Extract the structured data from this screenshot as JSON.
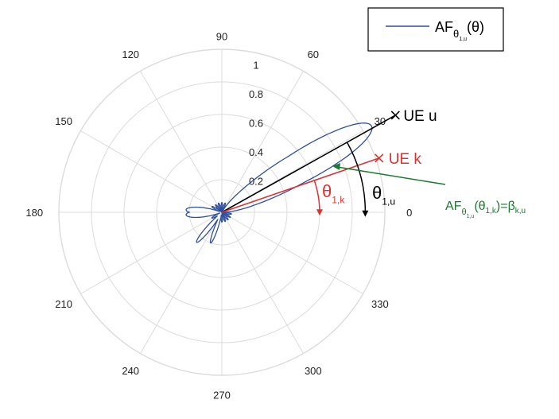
{
  "chart_data": {
    "type": "line",
    "subtype": "polar",
    "title": "",
    "rmax": 1,
    "radial_ticks": [
      "0.2",
      "0.4",
      "0.6",
      "0.8",
      "1"
    ],
    "radial_tick_values": [
      0.2,
      0.4,
      0.6,
      0.8,
      1.0
    ],
    "angular_ticks": [
      "0",
      "30",
      "60",
      "90",
      "120",
      "150",
      "180",
      "210",
      "240",
      "270",
      "300",
      "330"
    ],
    "angular_tick_values": [
      0,
      30,
      60,
      90,
      120,
      150,
      180,
      210,
      240,
      270,
      300,
      330
    ],
    "grid": true,
    "legend_placement": "top-right",
    "series": [
      {
        "name_main": "AF",
        "name_sub": "θ",
        "name_subsub": "1,u",
        "name_tail": "(θ)",
        "color": "#2f4f9f",
        "main_lobe_dir_deg": 30,
        "main_lobe_peak": 1.0,
        "main_lobe_halfwidth_deg": 9,
        "lobes": [
          {
            "dir_deg": 180,
            "peak": 0.2,
            "halfwidth_deg": 14
          },
          {
            "dir_deg": 230,
            "peak": 0.18,
            "halfwidth_deg": 6
          },
          {
            "dir_deg": 250,
            "peak": 0.14,
            "halfwidth_deg": 5
          }
        ]
      }
    ],
    "annotations": {
      "ue_u": {
        "label": "UE u",
        "angle_deg": 29.2,
        "r": 1.22,
        "color": "#000000"
      },
      "ue_k": {
        "label": "UE k",
        "angle_deg": 19,
        "r": 1.02,
        "color": "#e03030"
      },
      "theta_1k": {
        "symbol": "θ",
        "sub": "1,k",
        "color": "#e03030"
      },
      "theta_1u": {
        "symbol": "θ",
        "sub": "1,u",
        "color": "#000000"
      },
      "beta": {
        "pre": "AF",
        "sub1": "θ",
        "subsub1": "1,u",
        "open": "(",
        "mid": "θ",
        "sub2": "1,k",
        "close": ")=β",
        "sub3": "k,u",
        "color": "#1a7a30"
      }
    }
  }
}
